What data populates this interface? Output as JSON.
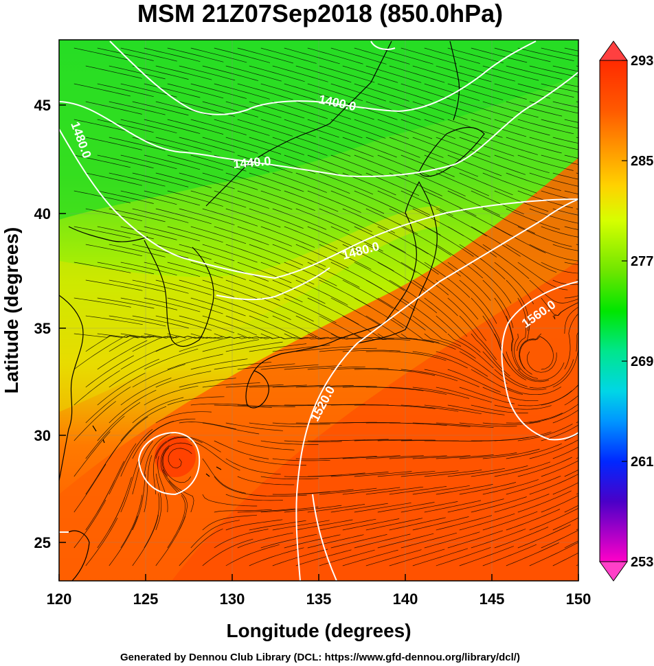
{
  "title": "MSM 21Z07Sep2018 (850.0hPa)",
  "xlabel": "Longitude (degrees)",
  "ylabel": "Latitude  (degrees)",
  "credit": "Generated by Dennou Club Library (DCL: https://www.gfd-dennou.org/library/dcl/)",
  "x_ticks": [
    "120",
    "125",
    "130",
    "135",
    "140",
    "145",
    "150"
  ],
  "y_ticks": [
    "25",
    "30",
    "35",
    "40",
    "45"
  ],
  "colorbar": {
    "ticks": [
      "293",
      "285",
      "277",
      "269",
      "261",
      "253"
    ],
    "min": 253,
    "max": 293
  },
  "contour_labels": {
    "c1400": "1400.0",
    "c1440": "1440.0",
    "c1480a": "1480.0",
    "c1480b": "1480.0",
    "c1520": "1520.0",
    "c1560": "1560.0"
  },
  "map": {
    "lon_range": [
      120,
      150
    ],
    "lat_range": [
      22.5,
      47.5
    ],
    "field": "temperature (K)",
    "overlay": [
      "geopotential height contours",
      "wind streamlines",
      "coastlines"
    ]
  }
}
